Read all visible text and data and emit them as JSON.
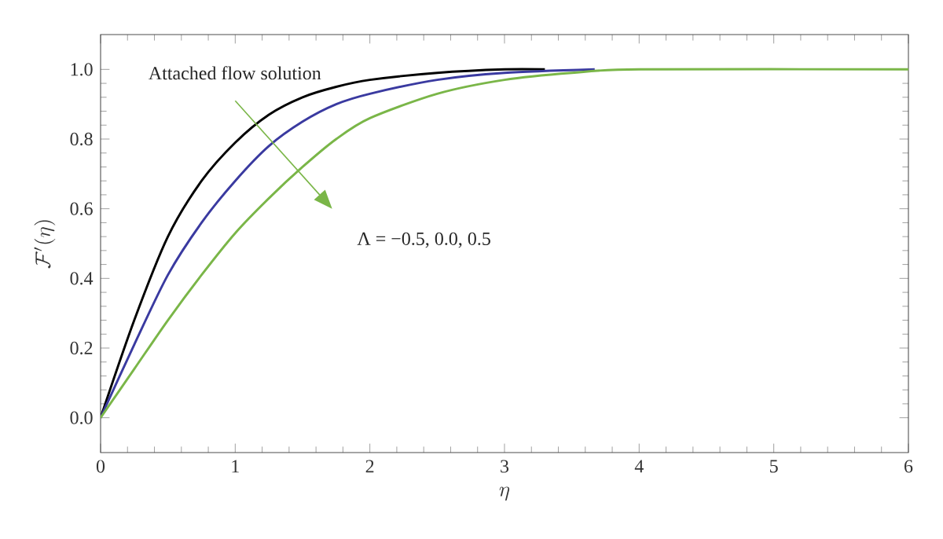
{
  "chart_data": {
    "type": "line",
    "xlabel": "\\eta",
    "ylabel": "\\mathcal{F}'(\\eta)",
    "annotations": [
      "Attached flow solution",
      "Λ = −0.5, 0.0, 0.5"
    ],
    "xlim": [
      0,
      6
    ],
    "ylim": [
      -0.1,
      1.1
    ],
    "xticks": [
      0,
      1,
      2,
      3,
      4,
      5,
      6
    ],
    "yticks": [
      {
        "value": 0,
        "label": "0.0"
      },
      {
        "value": 0.2,
        "label": "0.2"
      },
      {
        "value": 0.4,
        "label": "0.4"
      },
      {
        "value": 0.6,
        "label": "0.6"
      },
      {
        "value": 0.8,
        "label": "0.8"
      },
      {
        "value": 1.0,
        "label": "1.0"
      }
    ],
    "grid": false,
    "marker": "none",
    "line_style": "solid",
    "series": [
      {
        "color": "#000000",
        "x": [
          0,
          0.25,
          0.5,
          0.75,
          1,
          1.25,
          1.5,
          1.75,
          2,
          2.5,
          3,
          3.3
        ],
        "values": [
          0,
          0.28,
          0.52,
          0.68,
          0.79,
          0.87,
          0.92,
          0.95,
          0.97,
          0.99,
          1.0,
          1.0
        ]
      },
      {
        "color": "#3a3aa0",
        "x": [
          0,
          0.25,
          0.5,
          0.75,
          1,
          1.25,
          1.5,
          1.75,
          2,
          2.5,
          3,
          3.67
        ],
        "values": [
          0,
          0.21,
          0.41,
          0.56,
          0.68,
          0.78,
          0.85,
          0.9,
          0.93,
          0.97,
          0.99,
          1.0
        ]
      },
      {
        "color": "#7ab648",
        "x": [
          0,
          0.25,
          0.5,
          0.75,
          1,
          1.25,
          1.5,
          1.75,
          2,
          2.5,
          3,
          3.5,
          4,
          6
        ],
        "values": [
          0,
          0.14,
          0.28,
          0.41,
          0.53,
          0.63,
          0.72,
          0.8,
          0.86,
          0.93,
          0.97,
          0.99,
          1.0,
          1.0
        ]
      }
    ]
  }
}
